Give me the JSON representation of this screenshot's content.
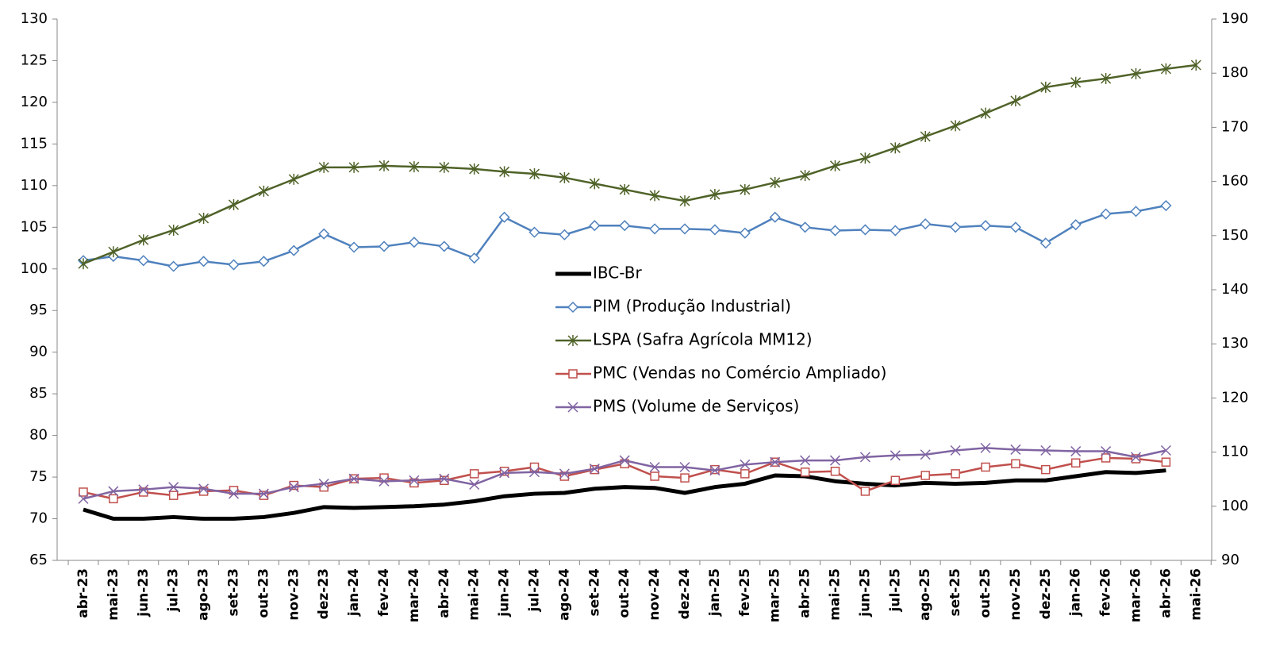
{
  "chart_data": {
    "type": "line",
    "categories": [
      "abr-23",
      "mai-23",
      "jun-23",
      "jul-23",
      "ago-23",
      "set-23",
      "out-23",
      "nov-23",
      "dez-23",
      "jan-24",
      "fev-24",
      "mar-24",
      "abr-24",
      "mai-24",
      "jun-24",
      "jul-24",
      "ago-24",
      "set-24",
      "out-24",
      "nov-24",
      "dez-24",
      "jan-25",
      "fev-25",
      "mar-25",
      "abr-25",
      "mai-25",
      "jun-25",
      "jul-25",
      "ago-25",
      "set-25",
      "out-25",
      "nov-25",
      "dez-25",
      "jan-26",
      "fev-26",
      "mar-26",
      "abr-26",
      "mai-26"
    ],
    "series": [
      {
        "name": "IBC-Br",
        "color": "#000000",
        "marker": "none",
        "values": [
          71.1,
          70.0,
          70.0,
          70.2,
          70.0,
          70.0,
          70.2,
          70.7,
          71.4,
          71.3,
          71.4,
          71.5,
          71.7,
          72.1,
          72.7,
          73.0,
          73.1,
          73.6,
          73.8,
          73.7,
          73.1,
          73.8,
          74.2,
          75.2,
          75.1,
          74.5,
          74.2,
          74.0,
          74.3,
          74.2,
          74.3,
          74.6,
          74.6,
          75.1,
          75.6,
          75.5,
          75.8,
          null
        ]
      },
      {
        "name": "PIM (Produção Industrial)",
        "color": "#4f81bd",
        "marker": "diamond",
        "values": [
          101.0,
          101.5,
          101.0,
          100.3,
          100.9,
          100.5,
          100.9,
          102.2,
          104.2,
          102.6,
          102.7,
          103.2,
          102.7,
          101.3,
          106.2,
          104.4,
          104.1,
          105.2,
          105.2,
          104.8,
          104.8,
          104.7,
          104.3,
          106.2,
          105.0,
          104.6,
          104.7,
          104.6,
          105.4,
          105.0,
          105.2,
          105.0,
          103.1,
          105.3,
          106.6,
          106.9,
          107.6,
          null
        ]
      },
      {
        "name": "LSPA (Safra Agrícola MM12)",
        "color": "#4f6228",
        "marker": "star",
        "axis": "y2",
        "values": [
          144.8,
          147.0,
          149.2,
          151.0,
          153.2,
          155.7,
          158.2,
          160.4,
          162.6,
          162.6,
          162.9,
          162.7,
          162.6,
          162.3,
          161.8,
          161.4,
          160.7,
          159.6,
          158.5,
          157.4,
          156.4,
          157.6,
          158.5,
          159.8,
          161.1,
          162.9,
          164.3,
          166.2,
          168.3,
          170.3,
          172.6,
          174.9,
          177.4,
          178.3,
          179.0,
          179.9,
          180.8,
          181.5
        ]
      },
      {
        "name": "PMC (Vendas no Comércio Ampliado)",
        "color": "#c0504d",
        "marker": "square",
        "values": [
          73.2,
          72.4,
          73.2,
          72.8,
          73.3,
          73.4,
          72.8,
          74.0,
          73.8,
          74.8,
          74.9,
          74.3,
          74.6,
          75.4,
          75.7,
          76.2,
          75.1,
          75.9,
          76.6,
          75.1,
          74.9,
          75.9,
          75.4,
          76.8,
          75.6,
          75.7,
          73.3,
          74.6,
          75.2,
          75.4,
          76.2,
          76.6,
          75.9,
          76.7,
          77.3,
          77.2,
          76.8,
          null
        ]
      },
      {
        "name": "PMS (Volume de Serviços)",
        "color": "#8064a2",
        "marker": "x",
        "values": [
          72.4,
          73.3,
          73.5,
          73.8,
          73.6,
          73.0,
          73.0,
          73.8,
          74.2,
          74.8,
          74.5,
          74.6,
          74.8,
          74.1,
          75.5,
          75.6,
          75.4,
          76.0,
          77.0,
          76.2,
          76.2,
          75.8,
          76.5,
          76.8,
          77.0,
          77.0,
          77.4,
          77.6,
          77.7,
          78.2,
          78.5,
          78.3,
          78.2,
          78.1,
          78.1,
          77.4,
          78.2,
          null
        ]
      }
    ],
    "ylim": [
      65,
      130
    ],
    "yticks": [
      65,
      70,
      75,
      80,
      85,
      90,
      95,
      100,
      105,
      110,
      115,
      120,
      125,
      130
    ],
    "y2lim": [
      90,
      190
    ],
    "y2ticks": [
      90,
      100,
      110,
      120,
      130,
      140,
      150,
      160,
      170,
      180,
      190
    ],
    "legend": "center",
    "grid": false
  }
}
